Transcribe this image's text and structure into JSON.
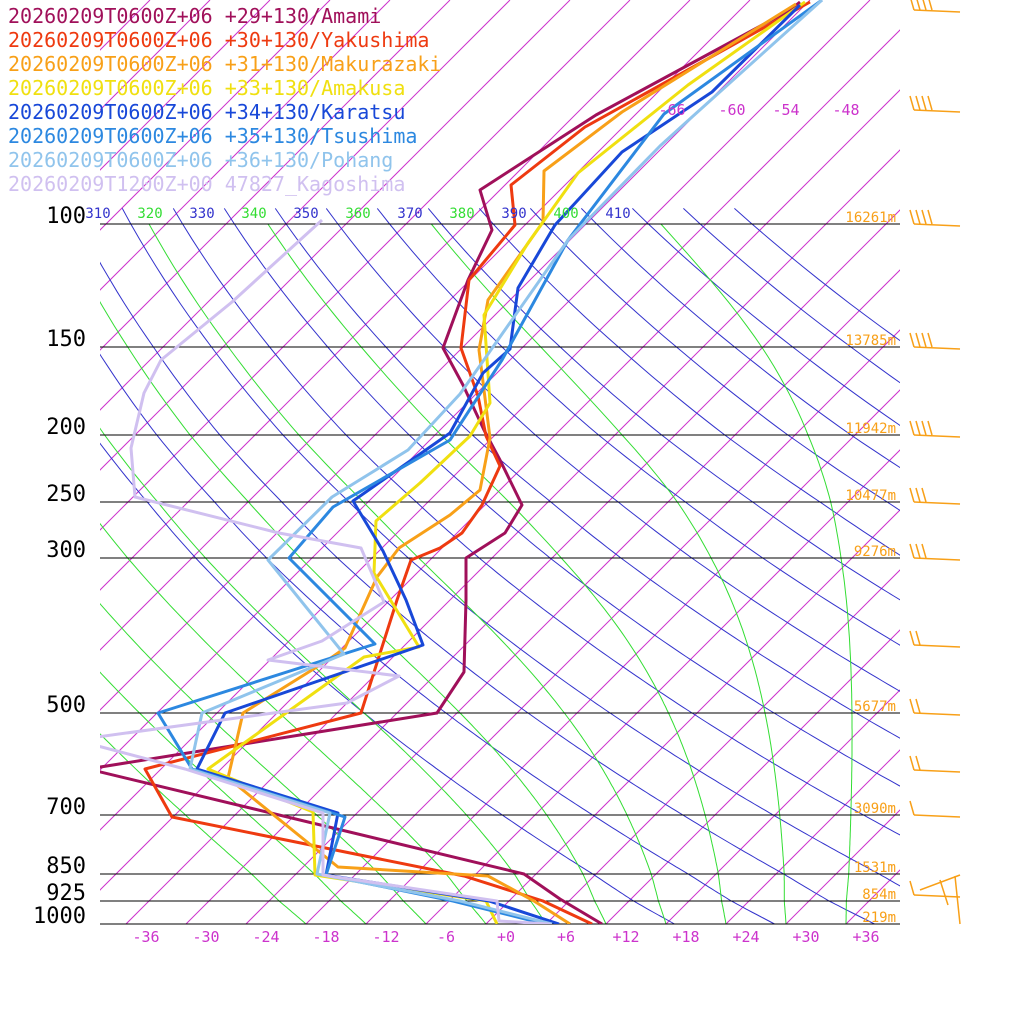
{
  "chart_data": {
    "type": "line",
    "pressure_levels": [
      100,
      150,
      200,
      250,
      300,
      500,
      700,
      850,
      925,
      1000
    ],
    "height_labels": [
      {
        "p": 100,
        "label": "16261m"
      },
      {
        "p": 150,
        "label": "13785m"
      },
      {
        "p": 200,
        "label": "11942m"
      },
      {
        "p": 250,
        "label": "10477m"
      },
      {
        "p": 300,
        "label": "9276m"
      },
      {
        "p": 500,
        "label": "5677m"
      },
      {
        "p": 700,
        "label": "3090m"
      },
      {
        "p": 850,
        "label": "1531m"
      },
      {
        "p": 925,
        "label": "854m"
      },
      {
        "p": 1000,
        "label": "219m"
      }
    ],
    "x_ticks": [
      "-36",
      "-30",
      "-24",
      "-18",
      "-12",
      "-6",
      "+0",
      "+6",
      "+12",
      "+18",
      "+24",
      "+30",
      "+36"
    ],
    "x_tick_values": [
      -36,
      -30,
      -24,
      -18,
      -12,
      -6,
      0,
      6,
      12,
      18,
      24,
      30,
      36
    ],
    "x_range": [
      -40,
      40
    ],
    "theta_labels": [
      "310",
      "320",
      "330",
      "340",
      "350",
      "360",
      "370",
      "380",
      "390",
      "400",
      "410"
    ],
    "upper_temp_labels": [
      "-66",
      "-60",
      "-54",
      "-48"
    ],
    "series": [
      {
        "name": "20260209T0600Z+06 +29+130/Amami",
        "color": "#a0105a"
      },
      {
        "name": "20260209T0600Z+06 +30+130/Yakushima",
        "color": "#ee3a10"
      },
      {
        "name": "20260209T0600Z+06 +31+130/Makurazaki",
        "color": "#f8a018"
      },
      {
        "name": "20260209T0600Z+06 +33+130/Amakusa",
        "color": "#f0e010"
      },
      {
        "name": "20260209T0600Z+06 +34+130/Karatsu",
        "color": "#1848d8"
      },
      {
        "name": "20260209T0600Z+06 +35+130/Tsushima",
        "color": "#2c88e0"
      },
      {
        "name": "20260209T0600Z+06 +36+130/Pohang",
        "color": "#90c4ec"
      },
      {
        "name": "20260209T1200Z+00 47827_Kagoshima",
        "color": "#d0c0f0"
      }
    ],
    "colors": {
      "isotherm": "#cc33cc",
      "dry_adiabat": "#3333cc",
      "moist_adiabat": "#33dd33",
      "height_label": "#f8a018",
      "wind_barb": "#f8a018",
      "tick_label": "#cc33cc",
      "pressure_line": "#000000"
    }
  }
}
